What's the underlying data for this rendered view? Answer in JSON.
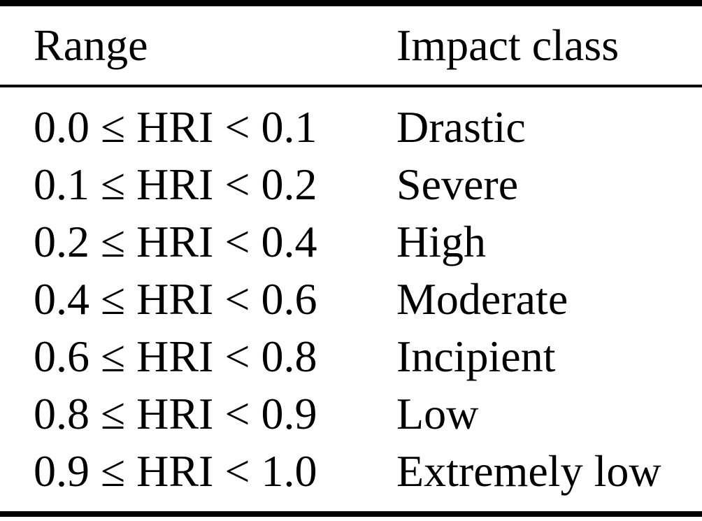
{
  "table": {
    "columns": [
      "Range",
      "Impact class"
    ],
    "rows": [
      {
        "range": "0.0 ≤ HRI < 0.1",
        "impact": "Drastic"
      },
      {
        "range": "0.1 ≤ HRI < 0.2",
        "impact": "Severe"
      },
      {
        "range": "0.2 ≤ HRI < 0.4",
        "impact": "High"
      },
      {
        "range": "0.4 ≤ HRI < 0.6",
        "impact": "Moderate"
      },
      {
        "range": "0.6 ≤ HRI < 0.8",
        "impact": "Incipient"
      },
      {
        "range": "0.8 ≤ HRI < 0.9",
        "impact": "Low"
      },
      {
        "range": "0.9 ≤ HRI < 1.0",
        "impact": "Extremely low"
      }
    ]
  },
  "colors": {
    "text": "#000000",
    "rule": "#000000",
    "background": "#ffffff"
  }
}
